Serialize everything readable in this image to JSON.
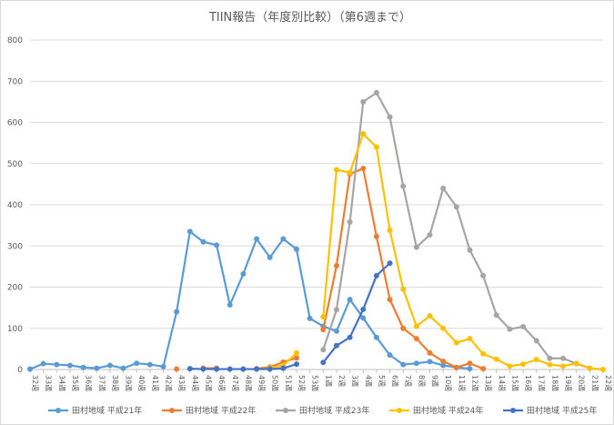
{
  "chart_data": {
    "type": "line",
    "title": "TIIN報告（年度別比較）（第6週まで）",
    "xlabel": "",
    "ylabel": "",
    "ylim": [
      0,
      800
    ],
    "yticks": [
      0,
      100,
      200,
      300,
      400,
      500,
      600,
      700,
      800
    ],
    "grid": true,
    "legend_position": "bottom",
    "categories": [
      "32週",
      "33週",
      "34週",
      "35週",
      "36週",
      "37週",
      "38週",
      "39週",
      "40週",
      "41週",
      "42週",
      "43週",
      "44週",
      "45週",
      "46週",
      "47週",
      "48週",
      "49週",
      "50週",
      "51週",
      "52週",
      "53週",
      "1週",
      "2週",
      "3週",
      "4週",
      "5週",
      "6週",
      "7週",
      "8週",
      "9週",
      "10週",
      "11週",
      "12週",
      "13週",
      "14週",
      "15週",
      "16週",
      "17週",
      "18週",
      "19週",
      "20週",
      "21週",
      "22週"
    ],
    "series": [
      {
        "name": "田村地域 平成21年",
        "color": "#5b9bd5",
        "values": [
          1,
          14,
          12,
          10,
          5,
          3,
          10,
          3,
          15,
          12,
          7,
          140,
          335,
          310,
          302,
          157,
          232,
          317,
          272,
          317,
          292,
          124,
          105,
          93,
          170,
          125,
          78,
          35,
          12,
          15,
          19,
          10,
          5,
          2,
          null,
          null,
          null,
          null,
          null,
          null,
          null,
          null,
          null,
          null
        ]
      },
      {
        "name": "田村地域 平成22年",
        "color": "#ed7d31",
        "values": [
          null,
          null,
          null,
          null,
          null,
          null,
          null,
          null,
          null,
          null,
          null,
          1,
          null,
          3,
          3,
          null,
          null,
          2,
          6,
          18,
          28,
          null,
          97,
          252,
          475,
          488,
          323,
          170,
          100,
          75,
          40,
          20,
          5,
          15,
          2,
          null,
          null,
          null,
          null,
          null,
          null,
          null,
          null,
          null
        ]
      },
      {
        "name": "田村地域 平成23年",
        "color": "#a5a5a5",
        "values": [
          null,
          null,
          null,
          null,
          null,
          null,
          null,
          null,
          null,
          null,
          null,
          null,
          null,
          null,
          null,
          null,
          null,
          null,
          null,
          null,
          null,
          null,
          48,
          145,
          358,
          650,
          672,
          613,
          445,
          297,
          327,
          440,
          395,
          290,
          228,
          132,
          98,
          104,
          70,
          27,
          27,
          14,
          3,
          null
        ]
      },
      {
        "name": "田村地域 平成24年",
        "color": "#ffc000",
        "values": [
          null,
          null,
          null,
          null,
          null,
          null,
          null,
          null,
          null,
          null,
          null,
          null,
          null,
          null,
          null,
          null,
          null,
          null,
          4,
          10,
          40,
          null,
          128,
          485,
          478,
          572,
          540,
          338,
          195,
          105,
          130,
          100,
          65,
          75,
          38,
          25,
          8,
          13,
          24,
          12,
          8,
          15,
          3,
          0
        ]
      },
      {
        "name": "田村地域 平成25年",
        "color": "#4472c4",
        "values": [
          null,
          null,
          null,
          null,
          null,
          null,
          null,
          null,
          null,
          null,
          null,
          null,
          2,
          1,
          1,
          1,
          1,
          1,
          1,
          3,
          13,
          null,
          17,
          58,
          78,
          146,
          228,
          258,
          null,
          null,
          null,
          null,
          null,
          null,
          null,
          null,
          null,
          null,
          null,
          null,
          null,
          null,
          null,
          null
        ]
      }
    ]
  }
}
